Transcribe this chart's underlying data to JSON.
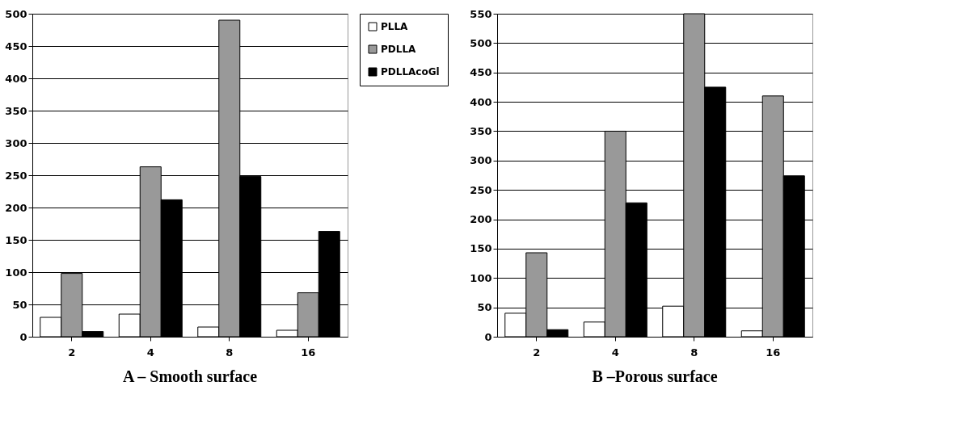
{
  "chart_data": [
    {
      "type": "bar",
      "title": "A – Smooth surface",
      "categories": [
        "2",
        "4",
        "8",
        "16"
      ],
      "ylim": [
        0,
        500
      ],
      "yticks": [
        0,
        50,
        100,
        150,
        200,
        250,
        300,
        350,
        400,
        450,
        500
      ],
      "grid": "y",
      "legend": "right",
      "series": [
        {
          "name": "PLLA",
          "color": "#ffffff",
          "values": [
            30,
            35,
            15,
            10
          ]
        },
        {
          "name": "PDLLA",
          "color": "#999999",
          "values": [
            98,
            263,
            490,
            68
          ]
        },
        {
          "name": "PDLLAcoGl",
          "color": "#000000",
          "values": [
            8,
            212,
            248,
            163
          ]
        }
      ]
    },
    {
      "type": "bar",
      "title": "B –Porous surface",
      "categories": [
        "2",
        "4",
        "8",
        "16"
      ],
      "ylim": [
        0,
        550
      ],
      "yticks": [
        0,
        50,
        100,
        150,
        200,
        250,
        300,
        350,
        400,
        450,
        500,
        550
      ],
      "grid": "y",
      "series": [
        {
          "color": "#ffffff",
          "values": [
            40,
            25,
            52,
            10
          ]
        },
        {
          "color": "#999999",
          "values": [
            143,
            350,
            550,
            410
          ]
        },
        {
          "color": "#000000",
          "values": [
            12,
            228,
            425,
            274
          ]
        }
      ]
    }
  ]
}
